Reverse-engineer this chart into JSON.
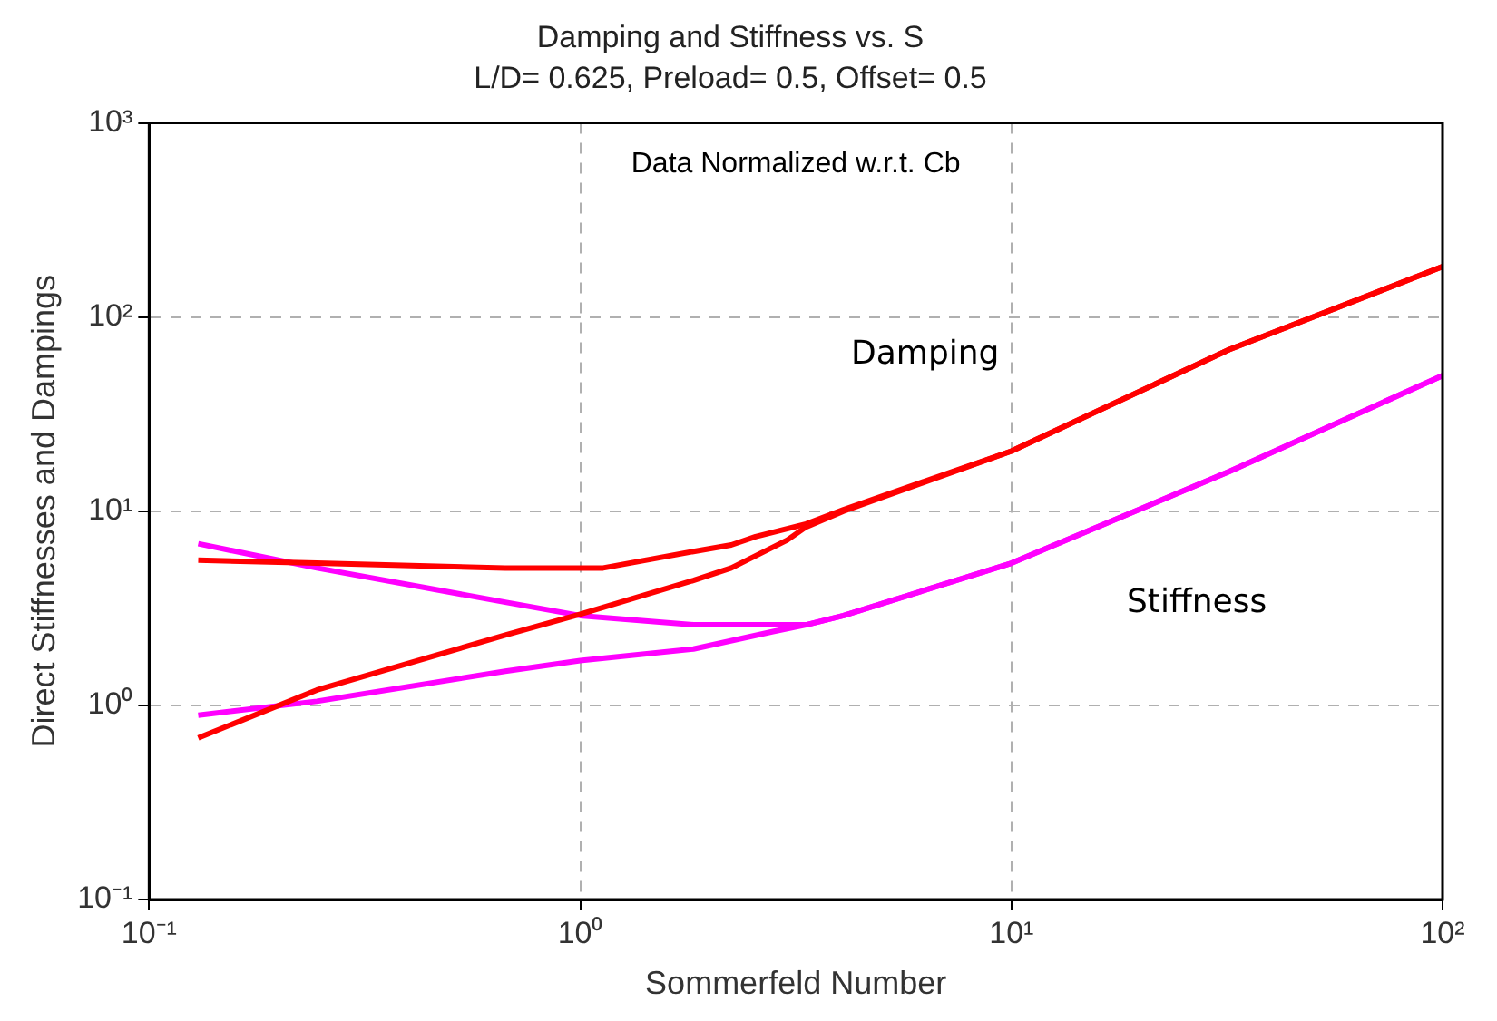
{
  "chart_data": {
    "type": "line",
    "title": "Damping and Stiffness vs. S",
    "subtitle": "L/D= 0.625, Preload= 0.5, Offset= 0.5",
    "xlabel": "Sommerfeld Number",
    "ylabel": "Direct Stiffnesses and Dampings",
    "log": "xy",
    "grid": true,
    "legend": false,
    "marker": "none",
    "line_style": "solid",
    "xlim": [
      0.1,
      100
    ],
    "ylim": [
      0.1,
      1000
    ],
    "xticks": [
      {
        "value": 0.1,
        "label": "10⁻¹"
      },
      {
        "value": 1,
        "label": "10⁰"
      },
      {
        "value": 10,
        "label": "10¹"
      },
      {
        "value": 100,
        "label": "10²"
      }
    ],
    "yticks": [
      {
        "value": 0.1,
        "label": "10⁻¹"
      },
      {
        "value": 1,
        "label": "10⁰"
      },
      {
        "value": 10,
        "label": "10¹"
      },
      {
        "value": 100,
        "label": "10²"
      },
      {
        "value": 1000,
        "label": "10³"
      }
    ],
    "annotations": [
      "Data Normalized w.r.t. Cb",
      "Damping",
      "Stiffness"
    ],
    "series": [
      {
        "color": "#ff0000",
        "x": [
          0.13,
          0.245,
          0.67,
          1.13,
          1.83,
          2.24,
          2.55,
          3.34,
          4.08,
          10,
          32,
          100
        ],
        "values": [
          5.6,
          5.4,
          5.1,
          5.1,
          6.2,
          6.7,
          7.4,
          8.6,
          10.2,
          20.4,
          68,
          182
        ]
      },
      {
        "color": "#ff0000",
        "x": [
          0.13,
          0.245,
          0.67,
          1,
          1.83,
          2.24,
          3.02,
          3.34,
          4.08,
          10,
          32,
          100
        ],
        "values": [
          0.68,
          1.2,
          2.3,
          2.95,
          4.4,
          5.1,
          7.1,
          8.3,
          10,
          20.4,
          68,
          182
        ]
      },
      {
        "color": "#ff00ff",
        "x": [
          0.13,
          0.245,
          0.67,
          1,
          1.83,
          3.02,
          3.34,
          4.08,
          10,
          32,
          100
        ],
        "values": [
          6.8,
          5.1,
          3.4,
          2.9,
          2.6,
          2.6,
          2.6,
          2.9,
          5.4,
          16,
          50
        ]
      },
      {
        "color": "#ff00ff",
        "x": [
          0.13,
          0.245,
          0.67,
          1,
          1.83,
          2.8,
          3.34,
          4.08,
          10,
          32,
          100
        ],
        "values": [
          0.89,
          1.05,
          1.5,
          1.7,
          1.95,
          2.4,
          2.6,
          2.9,
          5.4,
          16,
          50
        ]
      }
    ]
  }
}
